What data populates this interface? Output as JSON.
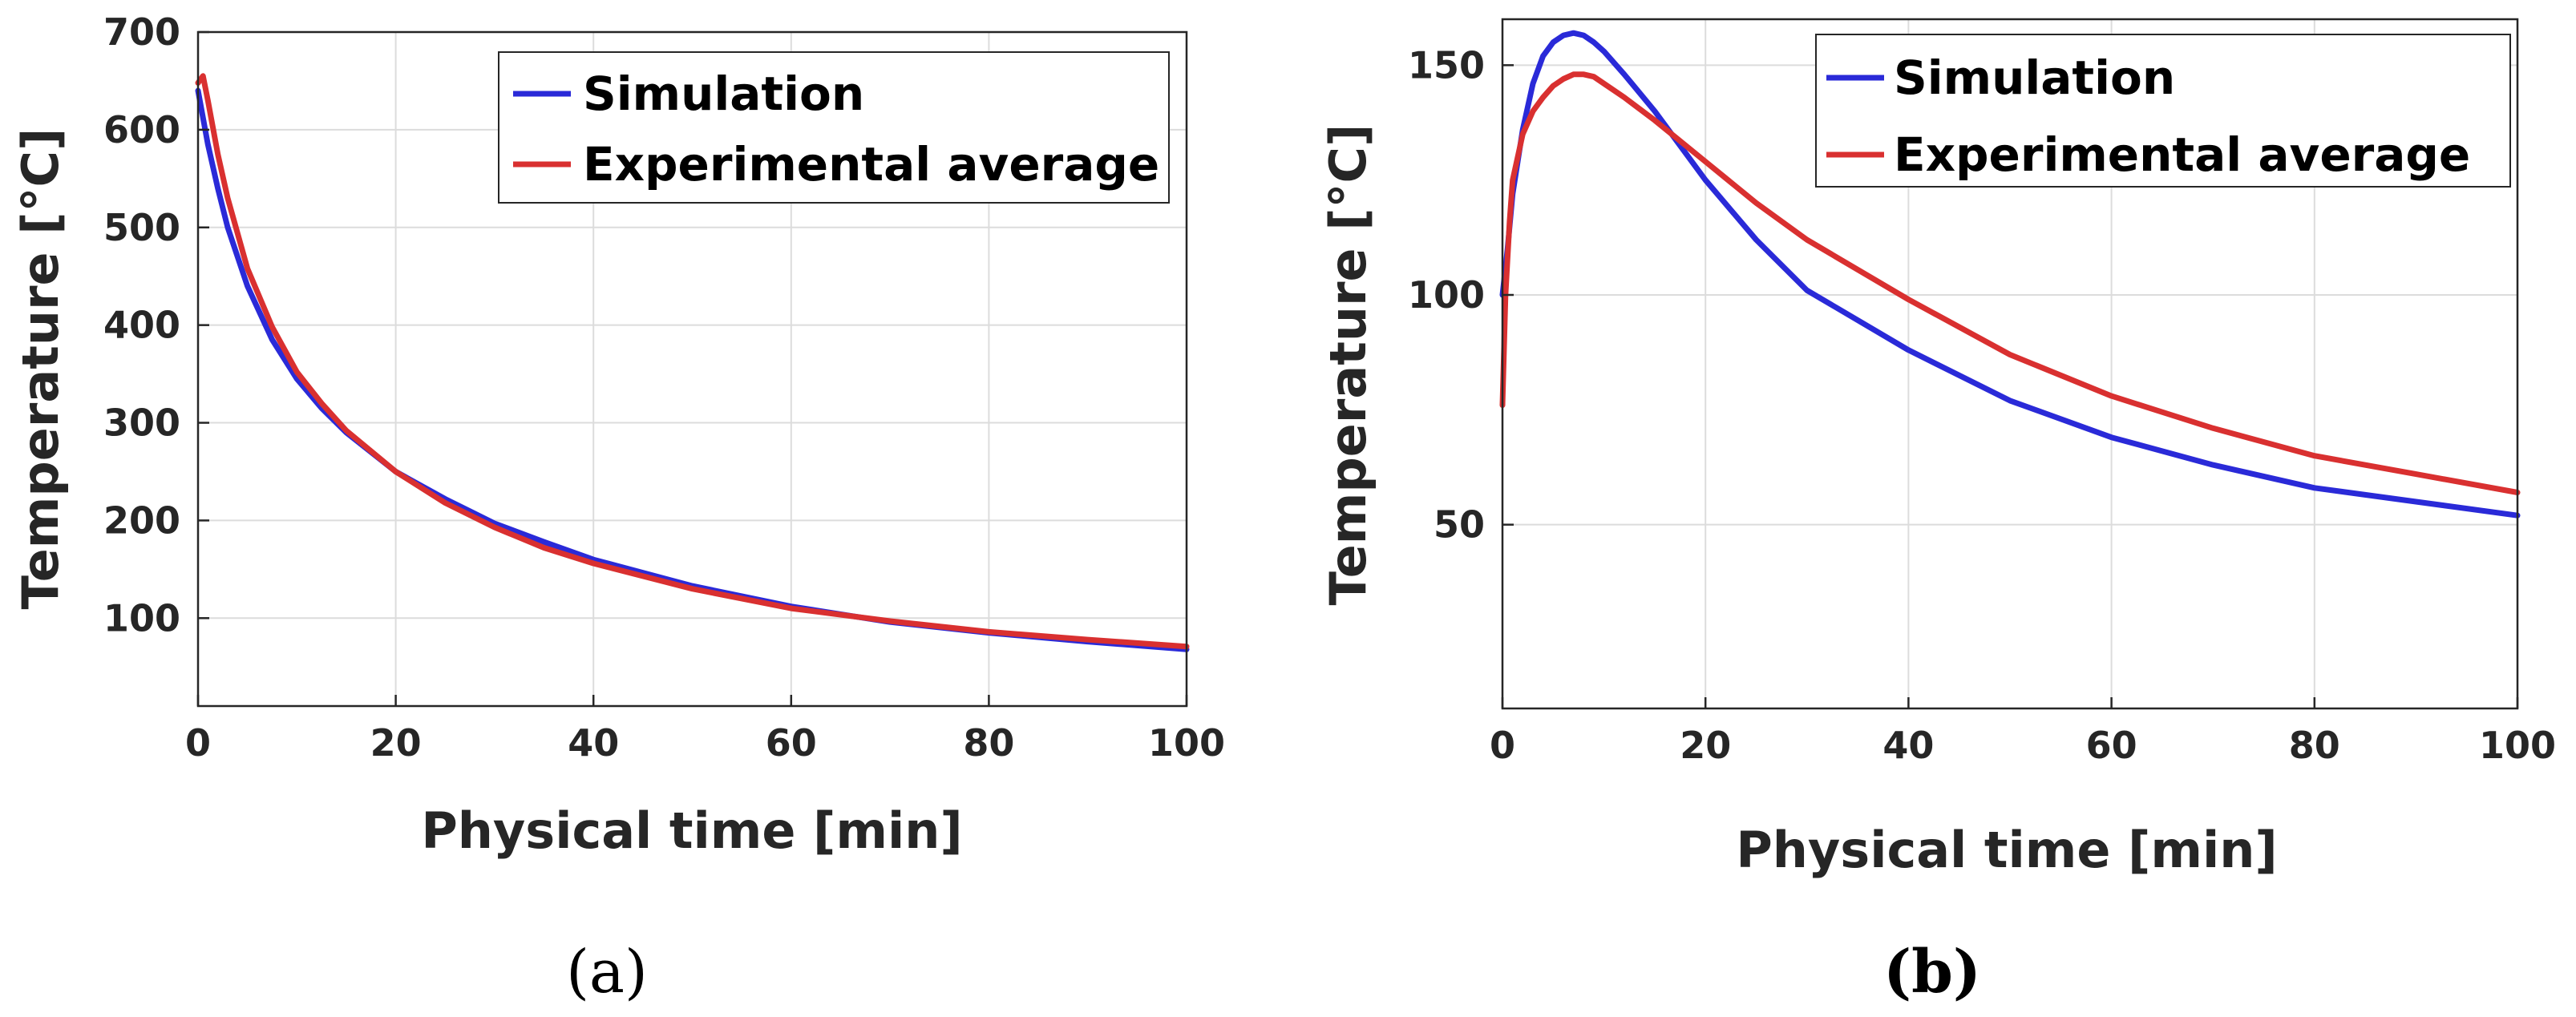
{
  "chart_data": [
    {
      "type": "line",
      "caption": "(a)",
      "xlabel": "Physical time [min]",
      "ylabel": "Temperature [°C]",
      "xlim": [
        0,
        100
      ],
      "ylim": [
        10,
        700
      ],
      "xticks": [
        0,
        20,
        40,
        60,
        80,
        100
      ],
      "yticks": [
        100,
        200,
        300,
        400,
        500,
        600,
        700
      ],
      "grid": true,
      "legend_position": "top-right",
      "series": [
        {
          "name": "Simulation",
          "color": "#2a2ad8",
          "x": [
            0,
            1,
            2,
            3,
            5,
            7.5,
            10,
            12.5,
            15,
            20,
            25,
            30,
            35,
            40,
            50,
            60,
            70,
            80,
            90,
            100
          ],
          "y": [
            640,
            585,
            540,
            500,
            440,
            385,
            345,
            315,
            290,
            250,
            222,
            197,
            178,
            160,
            133,
            112,
            96,
            85,
            76,
            68
          ]
        },
        {
          "name": "Experimental average",
          "color": "#d93030",
          "x": [
            0,
            0.5,
            1,
            2,
            3,
            5,
            7.5,
            10,
            12.5,
            15,
            20,
            25,
            30,
            35,
            40,
            50,
            60,
            70,
            80,
            90,
            100
          ],
          "y": [
            648,
            655,
            630,
            575,
            530,
            458,
            398,
            352,
            320,
            292,
            250,
            218,
            193,
            172,
            156,
            130,
            110,
            97,
            86,
            78,
            71
          ]
        }
      ]
    },
    {
      "type": "line",
      "caption": "(b)",
      "xlabel": "Physical time [min]",
      "ylabel": "Temperature [°C]",
      "xlim": [
        0,
        100
      ],
      "ylim": [
        10,
        160
      ],
      "xticks": [
        0,
        20,
        40,
        60,
        80,
        100
      ],
      "yticks": [
        50,
        100,
        150
      ],
      "grid": true,
      "legend_position": "top-right",
      "series": [
        {
          "name": "Simulation",
          "color": "#2a2ad8",
          "x": [
            0,
            0.5,
            1,
            2,
            3,
            4,
            5,
            6,
            7,
            8,
            9,
            10,
            12,
            15,
            20,
            25,
            30,
            40,
            50,
            60,
            70,
            80,
            90,
            100
          ],
          "y": [
            100,
            110,
            122,
            136,
            146,
            152,
            155,
            156.5,
            157,
            156.5,
            155,
            153,
            148,
            140,
            125,
            112,
            101,
            88,
            77,
            69,
            63,
            58,
            55,
            52
          ]
        },
        {
          "name": "Experimental average",
          "color": "#d93030",
          "x": [
            0,
            0.3,
            0.7,
            1,
            2,
            3,
            4,
            5,
            6,
            7,
            8,
            9,
            10,
            12,
            15,
            20,
            25,
            30,
            40,
            50,
            60,
            70,
            80,
            90,
            100
          ],
          "y": [
            76,
            100,
            116,
            125,
            135,
            140,
            143,
            145.5,
            147,
            148,
            148,
            147.5,
            146,
            143,
            138,
            129,
            120,
            112,
            99,
            87,
            78,
            71,
            65,
            61,
            57
          ]
        }
      ]
    }
  ]
}
